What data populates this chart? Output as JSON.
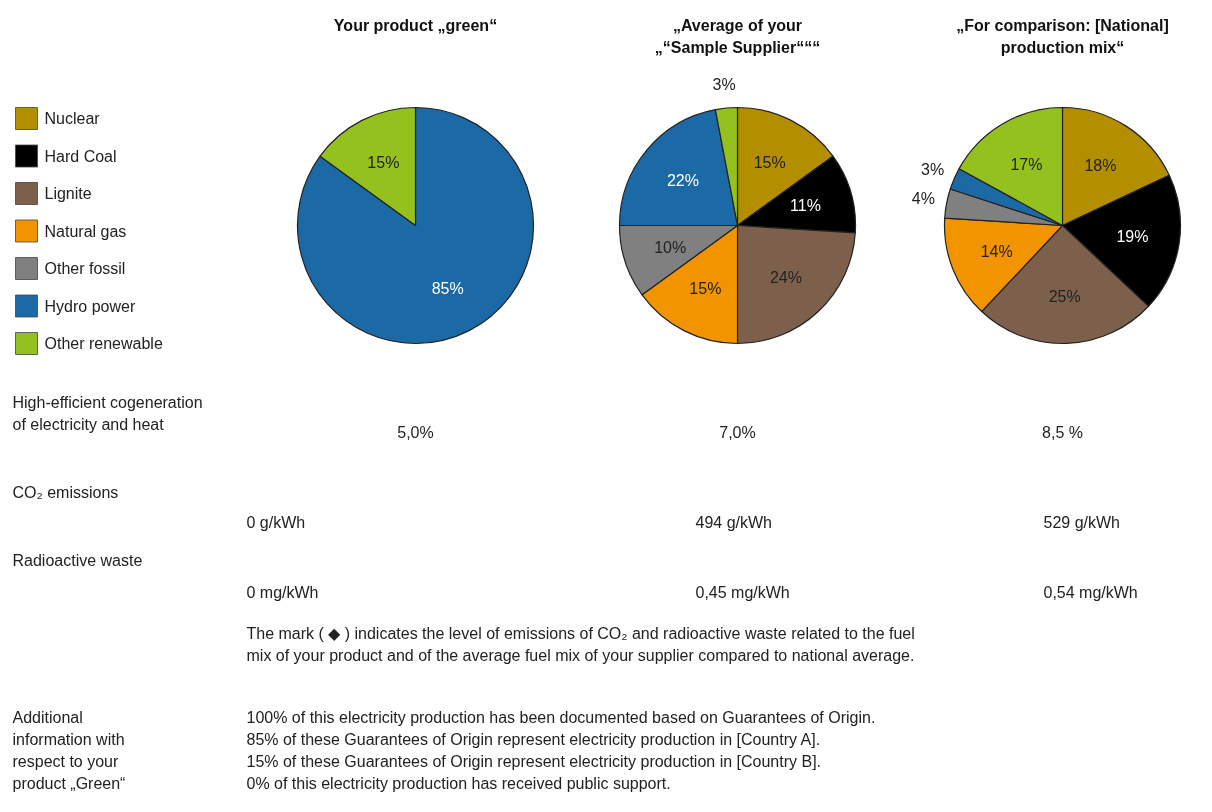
{
  "chart_data": [
    {
      "type": "pie",
      "title": "Your product „green“",
      "categories": [
        "Nuclear",
        "Hard Coal",
        "Lignite",
        "Natural gas",
        "Other fossil",
        "Hydro power",
        "Other renewable"
      ],
      "values": [
        0,
        0,
        0,
        0,
        0,
        85,
        15
      ],
      "colors": [
        "#b38f00",
        "#000000",
        "#7d604c",
        "#f29400",
        "#808080",
        "#1b6aa5",
        "#95c11f"
      ],
      "value_labels": [
        null,
        null,
        null,
        null,
        null,
        "85%",
        "15%"
      ],
      "legend": "left",
      "annotations": [
        "High-efficient cogeneration\nof electricity and heat",
        "5,0%"
      ]
    },
    {
      "type": "pie",
      "title": "„Average of your\n„“Sample Supplier“““",
      "categories": [
        null,
        null,
        null,
        null,
        null,
        null,
        null
      ],
      "values": [
        15,
        11,
        24,
        15,
        10,
        22,
        3
      ],
      "colors": [
        "#b38f00",
        "#000000",
        "#7d604c",
        "#f29400",
        "#808080",
        "#1b6aa5",
        "#95c11f"
      ],
      "value_labels": [
        "15%",
        "11%",
        "24%",
        "15%",
        "10%",
        "22%",
        "3%"
      ],
      "annotations": [
        "7,0%"
      ]
    },
    {
      "type": "pie",
      "title": "„For comparison: [National]\nproduction mix“",
      "categories": [
        null,
        null,
        null,
        null,
        null,
        null,
        null
      ],
      "values": [
        18,
        19,
        25,
        14,
        4,
        3,
        17
      ],
      "colors": [
        "#b38f00",
        "#000000",
        "#7d604c",
        "#f29400",
        "#808080",
        "#1b6aa5",
        "#95c11f"
      ],
      "value_labels": [
        "18%",
        "19%",
        "25%",
        "14%",
        "4%",
        "3%",
        "17%"
      ],
      "annotations": [
        "8,5 %"
      ]
    },
    {
      "type": "other",
      "annotations": [
        "CO₂ emissions",
        "0 g/kWh",
        "494 g/kWh",
        "529 g/kWh",
        "Radioactive waste",
        "0 mg/kWh",
        "0,45 mg/kWh",
        "0,54 mg/kWh",
        "The mark ( ◆ ) indicates the level of emissions of CO₂ and radioactive waste related to the fuel\nmix of your product and of the average fuel mix of your supplier compared to national average.",
        "Additional\ninformation with\nrespect to your\nproduct „Green“",
        "100% of this electricity production has been documented based on Guarantees of Origin.\n85% of these Guarantees of Origin represent electricity production in [Country A].\n15% of these Guarantees of Origin represent electricity production in [Country B].\n0% of this electricity production has received public support."
      ]
    }
  ]
}
